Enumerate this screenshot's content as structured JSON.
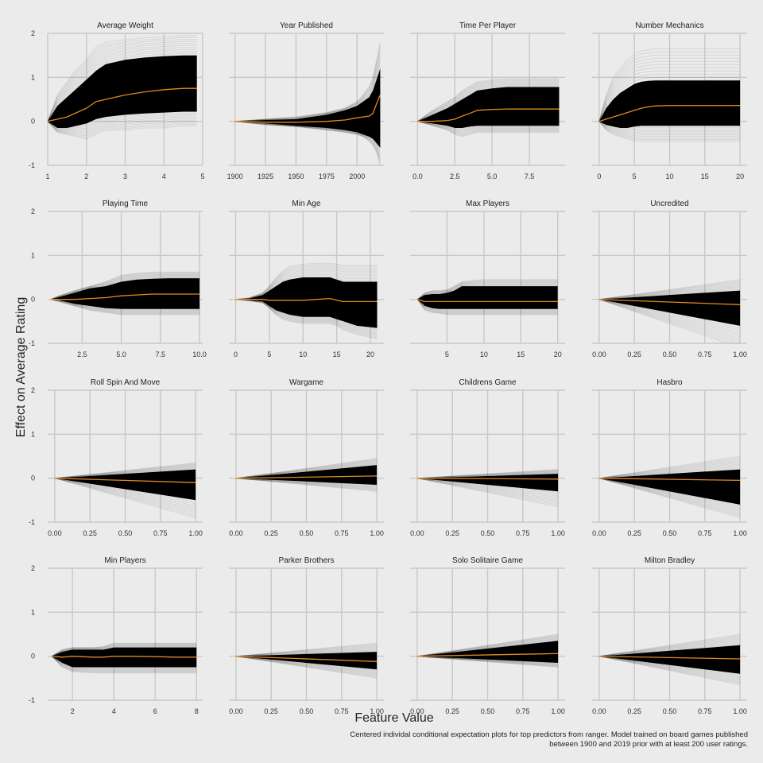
{
  "colors": {
    "background": "#ebebeb",
    "grid": "#c8c8c8",
    "ice_lines": "#000000",
    "average_line": "#e08a1e"
  },
  "chart_data": {
    "type": "line",
    "ylabel": "Effect on Average Rating",
    "xlabel": "Feature Value",
    "caption_line1": "Centered individal conditional expectation plots for top predictors from ranger. Model trained on board games published",
    "caption_line2": "between 1900 and 2019 prior with at least 200 user ratings.",
    "ylim": [
      -1,
      2
    ],
    "yticks": [
      "-1",
      "0",
      "1",
      "2"
    ],
    "panels": [
      {
        "title": "Average Weight",
        "xlim": [
          1,
          5
        ],
        "xticks": [
          1,
          2,
          3,
          4,
          5
        ],
        "xticklabels": [
          "1",
          "2",
          "3",
          "4",
          "5"
        ],
        "x": [
          1,
          1.25,
          1.5,
          1.75,
          2,
          2.25,
          2.5,
          3,
          3.5,
          4,
          4.5,
          4.85
        ],
        "mean": [
          0,
          0.05,
          0.1,
          0.2,
          0.3,
          0.45,
          0.5,
          0.6,
          0.67,
          0.72,
          0.75,
          0.75
        ],
        "upper": [
          0,
          0.35,
          0.55,
          0.75,
          0.95,
          1.15,
          1.3,
          1.4,
          1.45,
          1.48,
          1.5,
          1.5
        ],
        "lower": [
          0,
          -0.15,
          -0.15,
          -0.1,
          -0.05,
          0.05,
          0.1,
          0.15,
          0.18,
          0.2,
          0.22,
          0.22
        ],
        "outer_upper": [
          0,
          0.6,
          0.9,
          1.2,
          1.4,
          1.7,
          1.8,
          1.85,
          1.9,
          1.92,
          1.95,
          1.95
        ],
        "outer_lower": [
          0,
          -0.25,
          -0.3,
          -0.35,
          -0.4,
          -0.3,
          -0.2,
          -0.2,
          -0.15,
          -0.15,
          -0.1,
          -0.1
        ]
      },
      {
        "title": "Year Published",
        "xlim": [
          1895,
          2022
        ],
        "xticks": [
          1900,
          1925,
          1950,
          1975,
          2000
        ],
        "xticklabels": [
          "1900",
          "1925",
          "1950",
          "1975",
          "2000"
        ],
        "x": [
          1900,
          1925,
          1950,
          1975,
          1990,
          2000,
          2005,
          2010,
          2013,
          2016,
          2019
        ],
        "mean": [
          0,
          -0.02,
          -0.02,
          0,
          0.03,
          0.08,
          0.1,
          0.12,
          0.18,
          0.4,
          0.6
        ],
        "upper": [
          0,
          0.03,
          0.05,
          0.15,
          0.25,
          0.35,
          0.45,
          0.55,
          0.7,
          0.95,
          1.2
        ],
        "lower": [
          0,
          -0.05,
          -0.1,
          -0.15,
          -0.2,
          -0.25,
          -0.3,
          -0.35,
          -0.4,
          -0.5,
          -0.6
        ],
        "outer_upper": [
          0,
          0.05,
          0.1,
          0.2,
          0.3,
          0.45,
          0.6,
          0.8,
          1.0,
          1.4,
          1.8
        ],
        "outer_lower": [
          0,
          -0.08,
          -0.12,
          -0.2,
          -0.25,
          -0.3,
          -0.35,
          -0.45,
          -0.55,
          -0.7,
          -1.0
        ]
      },
      {
        "title": "Time Per Player",
        "xlim": [
          -0.5,
          9.9
        ],
        "xticks": [
          0,
          2.5,
          5,
          7.5
        ],
        "xticklabels": [
          "0.0",
          "2.5",
          "5.0",
          "7.5"
        ],
        "x": [
          0,
          1,
          2,
          2.5,
          3,
          3.5,
          4,
          5,
          6,
          7,
          8,
          9.5
        ],
        "mean": [
          0,
          0,
          0.02,
          0.05,
          0.12,
          0.18,
          0.25,
          0.27,
          0.28,
          0.28,
          0.28,
          0.28
        ],
        "upper": [
          0,
          0.15,
          0.3,
          0.4,
          0.5,
          0.6,
          0.7,
          0.75,
          0.78,
          0.78,
          0.78,
          0.78
        ],
        "lower": [
          0,
          -0.05,
          -0.1,
          -0.15,
          -0.15,
          -0.12,
          -0.1,
          -0.1,
          -0.1,
          -0.1,
          -0.1,
          -0.1
        ],
        "outer_upper": [
          0,
          0.25,
          0.45,
          0.55,
          0.7,
          0.8,
          0.9,
          0.95,
          0.97,
          0.97,
          0.97,
          0.97
        ],
        "outer_lower": [
          0,
          -0.1,
          -0.2,
          -0.3,
          -0.35,
          -0.3,
          -0.25,
          -0.25,
          -0.25,
          -0.25,
          -0.25,
          -0.25
        ]
      },
      {
        "title": "Number Mechanics",
        "xlim": [
          -1,
          21
        ],
        "xticks": [
          0,
          5,
          10,
          15,
          20
        ],
        "xticklabels": [
          "0",
          "5",
          "10",
          "15",
          "20"
        ],
        "x": [
          0,
          1,
          2,
          3,
          4,
          5,
          6,
          7,
          8,
          10,
          12,
          15,
          20
        ],
        "mean": [
          0,
          0.05,
          0.1,
          0.15,
          0.2,
          0.25,
          0.3,
          0.33,
          0.35,
          0.36,
          0.36,
          0.36,
          0.36
        ],
        "upper": [
          0,
          0.3,
          0.5,
          0.65,
          0.75,
          0.85,
          0.9,
          0.92,
          0.93,
          0.93,
          0.93,
          0.93,
          0.93
        ],
        "lower": [
          0,
          -0.08,
          -0.12,
          -0.15,
          -0.15,
          -0.12,
          -0.1,
          -0.1,
          -0.1,
          -0.1,
          -0.1,
          -0.1,
          -0.1
        ],
        "outer_upper": [
          0,
          0.6,
          1.0,
          1.2,
          1.4,
          1.55,
          1.6,
          1.62,
          1.65,
          1.65,
          1.65,
          1.65,
          1.65
        ],
        "outer_lower": [
          0,
          -0.2,
          -0.3,
          -0.35,
          -0.4,
          -0.45,
          -0.45,
          -0.45,
          -0.45,
          -0.45,
          -0.45,
          -0.45,
          -0.45
        ]
      },
      {
        "title": "Playing Time",
        "xlim": [
          0.3,
          10.2
        ],
        "xticks": [
          2.5,
          5,
          7.5,
          10
        ],
        "xticklabels": [
          "2.5",
          "5.0",
          "7.5",
          "10.0"
        ],
        "x": [
          0.5,
          1,
          2,
          3,
          4,
          5,
          6,
          7,
          8,
          9,
          10
        ],
        "mean": [
          0,
          0,
          0,
          0.02,
          0.04,
          0.08,
          0.1,
          0.12,
          0.12,
          0.12,
          0.12
        ],
        "upper": [
          0,
          0.05,
          0.15,
          0.25,
          0.3,
          0.4,
          0.45,
          0.47,
          0.48,
          0.48,
          0.48
        ],
        "lower": [
          0,
          -0.02,
          -0.1,
          -0.15,
          -0.2,
          -0.22,
          -0.22,
          -0.22,
          -0.22,
          -0.22,
          -0.22
        ],
        "outer_upper": [
          0,
          0.08,
          0.2,
          0.3,
          0.4,
          0.55,
          0.6,
          0.62,
          0.62,
          0.62,
          0.62
        ],
        "outer_lower": [
          0,
          -0.05,
          -0.15,
          -0.25,
          -0.3,
          -0.35,
          -0.35,
          -0.35,
          -0.35,
          -0.35,
          -0.35
        ]
      },
      {
        "title": "Min Age",
        "xlim": [
          -1,
          22
        ],
        "xticks": [
          0,
          5,
          10,
          15,
          20
        ],
        "xticklabels": [
          "0",
          "5",
          "10",
          "15",
          "20"
        ],
        "x": [
          0,
          2,
          4,
          5,
          6,
          7,
          8,
          10,
          12,
          14,
          15,
          16,
          18,
          21
        ],
        "mean": [
          0,
          0,
          0,
          -0.02,
          -0.02,
          -0.02,
          -0.02,
          -0.02,
          0,
          0.02,
          -0.02,
          -0.05,
          -0.05,
          -0.05
        ],
        "upper": [
          0,
          0.02,
          0.1,
          0.2,
          0.3,
          0.4,
          0.45,
          0.5,
          0.5,
          0.5,
          0.45,
          0.4,
          0.4,
          0.4
        ],
        "lower": [
          0,
          -0.02,
          -0.05,
          -0.15,
          -0.25,
          -0.3,
          -0.35,
          -0.4,
          -0.4,
          -0.4,
          -0.45,
          -0.5,
          -0.6,
          -0.65
        ],
        "outer_upper": [
          0,
          0.03,
          0.15,
          0.3,
          0.5,
          0.65,
          0.75,
          0.8,
          0.82,
          0.82,
          0.8,
          0.78,
          0.78,
          0.78
        ],
        "outer_lower": [
          0,
          -0.03,
          -0.08,
          -0.2,
          -0.35,
          -0.45,
          -0.5,
          -0.55,
          -0.55,
          -0.55,
          -0.6,
          -0.7,
          -0.8,
          -0.9
        ]
      },
      {
        "title": "Max Players",
        "xlim": [
          0,
          21
        ],
        "xticks": [
          5,
          10,
          15,
          20
        ],
        "xticklabels": [
          "5",
          "10",
          "15",
          "20"
        ],
        "x": [
          1,
          2,
          3,
          4,
          5,
          6,
          7,
          8,
          10,
          15,
          20
        ],
        "mean": [
          0,
          -0.05,
          -0.05,
          -0.05,
          -0.05,
          -0.05,
          -0.05,
          -0.05,
          -0.05,
          -0.05,
          -0.05
        ],
        "upper": [
          0,
          0.1,
          0.12,
          0.12,
          0.15,
          0.2,
          0.3,
          0.3,
          0.3,
          0.3,
          0.3
        ],
        "lower": [
          0,
          -0.15,
          -0.2,
          -0.22,
          -0.22,
          -0.22,
          -0.22,
          -0.22,
          -0.22,
          -0.22,
          -0.22
        ],
        "outer_upper": [
          0,
          0.15,
          0.2,
          0.2,
          0.22,
          0.3,
          0.4,
          0.42,
          0.45,
          0.45,
          0.45
        ],
        "outer_lower": [
          0,
          -0.25,
          -0.3,
          -0.32,
          -0.35,
          -0.35,
          -0.35,
          -0.35,
          -0.35,
          -0.35,
          -0.35
        ]
      },
      {
        "title": "Uncredited",
        "xlim": [
          -0.05,
          1.05
        ],
        "xticks": [
          0,
          0.25,
          0.5,
          0.75,
          1
        ],
        "xticklabels": [
          "0.00",
          "0.25",
          "0.50",
          "0.75",
          "1.00"
        ],
        "x": [
          0,
          1
        ],
        "mean": [
          0,
          -0.12
        ],
        "upper": [
          0,
          0.2
        ],
        "lower": [
          0,
          -0.6
        ],
        "outer_upper": [
          0,
          0.45
        ],
        "outer_lower": [
          0,
          -1.1
        ]
      },
      {
        "title": "Roll Spin And Move",
        "xlim": [
          -0.05,
          1.05
        ],
        "xticks": [
          0,
          0.25,
          0.5,
          0.75,
          1
        ],
        "xticklabels": [
          "0.00",
          "0.25",
          "0.50",
          "0.75",
          "1.00"
        ],
        "x": [
          0,
          1
        ],
        "mean": [
          0,
          -0.1
        ],
        "upper": [
          0,
          0.2
        ],
        "lower": [
          0,
          -0.5
        ],
        "outer_upper": [
          0,
          0.35
        ],
        "outer_lower": [
          0,
          -0.9
        ]
      },
      {
        "title": "Wargame",
        "xlim": [
          -0.05,
          1.05
        ],
        "xticks": [
          0,
          0.25,
          0.5,
          0.75,
          1
        ],
        "xticklabels": [
          "0.00",
          "0.25",
          "0.50",
          "0.75",
          "1.00"
        ],
        "x": [
          0,
          1
        ],
        "mean": [
          0,
          0.05
        ],
        "upper": [
          0,
          0.3
        ],
        "lower": [
          0,
          -0.15
        ],
        "outer_upper": [
          0,
          0.45
        ],
        "outer_lower": [
          0,
          -0.3
        ]
      },
      {
        "title": "Childrens Game",
        "xlim": [
          -0.05,
          1.05
        ],
        "xticks": [
          0,
          0.25,
          0.5,
          0.75,
          1
        ],
        "xticklabels": [
          "0.00",
          "0.25",
          "0.50",
          "0.75",
          "1.00"
        ],
        "x": [
          0,
          1
        ],
        "mean": [
          0,
          -0.02
        ],
        "upper": [
          0,
          0.1
        ],
        "lower": [
          0,
          -0.3
        ],
        "outer_upper": [
          0,
          0.2
        ],
        "outer_lower": [
          0,
          -0.65
        ]
      },
      {
        "title": "Hasbro",
        "xlim": [
          -0.05,
          1.05
        ],
        "xticks": [
          0,
          0.25,
          0.5,
          0.75,
          1
        ],
        "xticklabels": [
          "0.00",
          "0.25",
          "0.50",
          "0.75",
          "1.00"
        ],
        "x": [
          0,
          1
        ],
        "mean": [
          0,
          -0.05
        ],
        "upper": [
          0,
          0.2
        ],
        "lower": [
          0,
          -0.6
        ],
        "outer_upper": [
          0,
          0.5
        ],
        "outer_lower": [
          0,
          -0.9
        ]
      },
      {
        "title": "Min Players",
        "xlim": [
          0.8,
          8.3
        ],
        "xticks": [
          2,
          4,
          6,
          8
        ],
        "xticklabels": [
          "2",
          "4",
          "6",
          "8"
        ],
        "x": [
          1,
          1.5,
          2,
          3,
          3.5,
          4,
          5,
          6,
          7,
          8
        ],
        "mean": [
          0,
          -0.02,
          0,
          -0.02,
          -0.02,
          0,
          0,
          -0.01,
          -0.02,
          -0.02
        ],
        "upper": [
          0,
          0.1,
          0.15,
          0.15,
          0.15,
          0.2,
          0.2,
          0.2,
          0.2,
          0.2
        ],
        "lower": [
          0,
          -0.15,
          -0.25,
          -0.25,
          -0.25,
          -0.25,
          -0.25,
          -0.25,
          -0.25,
          -0.25
        ],
        "outer_upper": [
          0,
          0.15,
          0.2,
          0.2,
          0.22,
          0.3,
          0.3,
          0.3,
          0.3,
          0.3
        ],
        "outer_lower": [
          0,
          -0.25,
          -0.35,
          -0.38,
          -0.38,
          -0.38,
          -0.38,
          -0.38,
          -0.38,
          -0.38
        ]
      },
      {
        "title": "Parker Brothers",
        "xlim": [
          -0.05,
          1.05
        ],
        "xticks": [
          0,
          0.25,
          0.5,
          0.75,
          1
        ],
        "xticklabels": [
          "0.00",
          "0.25",
          "0.50",
          "0.75",
          "1.00"
        ],
        "x": [
          0,
          1
        ],
        "mean": [
          0,
          -0.12
        ],
        "upper": [
          0,
          0.1
        ],
        "lower": [
          0,
          -0.3
        ],
        "outer_upper": [
          0,
          0.3
        ],
        "outer_lower": [
          0,
          -0.5
        ]
      },
      {
        "title": "Solo Solitaire Game",
        "xlim": [
          -0.05,
          1.05
        ],
        "xticks": [
          0,
          0.25,
          0.5,
          0.75,
          1
        ],
        "xticklabels": [
          "0.00",
          "0.25",
          "0.50",
          "0.75",
          "1.00"
        ],
        "x": [
          0,
          1
        ],
        "mean": [
          0,
          0.06
        ],
        "upper": [
          0,
          0.35
        ],
        "lower": [
          0,
          -0.15
        ],
        "outer_upper": [
          0,
          0.5
        ],
        "outer_lower": [
          0,
          -0.25
        ]
      },
      {
        "title": "Milton Bradley",
        "xlim": [
          -0.05,
          1.05
        ],
        "xticks": [
          0,
          0.25,
          0.5,
          0.75,
          1
        ],
        "xticklabels": [
          "0.00",
          "0.25",
          "0.50",
          "0.75",
          "1.00"
        ],
        "x": [
          0,
          1
        ],
        "mean": [
          0,
          -0.06
        ],
        "upper": [
          0,
          0.25
        ],
        "lower": [
          0,
          -0.4
        ],
        "outer_upper": [
          0,
          0.5
        ],
        "outer_lower": [
          0,
          -0.65
        ]
      }
    ]
  }
}
